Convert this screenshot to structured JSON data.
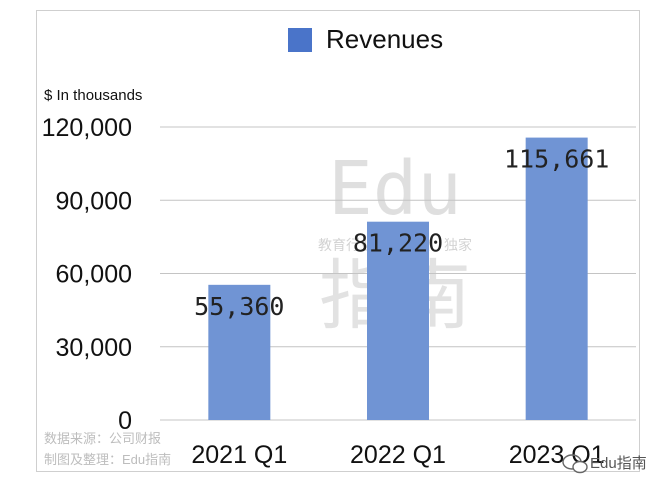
{
  "chart_data": {
    "type": "bar",
    "categories": [
      "2021 Q1",
      "2022 Q1",
      "2023 Q1"
    ],
    "series": [
      {
        "name": "Revenues",
        "values": [
          55360,
          81220,
          115661
        ],
        "color": "#7094d4"
      }
    ],
    "data_labels": [
      "55,360",
      "81,220",
      "115,661"
    ],
    "ylabel": "$ In thousands",
    "ylim": [
      0,
      120000
    ],
    "yticks": [
      0,
      30000,
      60000,
      90000,
      120000
    ],
    "ytick_labels": [
      "0",
      "30,000",
      "60,000",
      "90,000",
      "120,000"
    ],
    "grid": true,
    "legend_position": "top-center",
    "legend_color": "#4a74c9"
  },
  "watermark": {
    "latin": "Edu",
    "tagline": "教育行业、有深度、独家",
    "cn": "指南"
  },
  "footer": {
    "source_line1": "数据来源：公司财报",
    "source_line2": "制图及整理：Edu指南",
    "brand": "Edu指南"
  }
}
